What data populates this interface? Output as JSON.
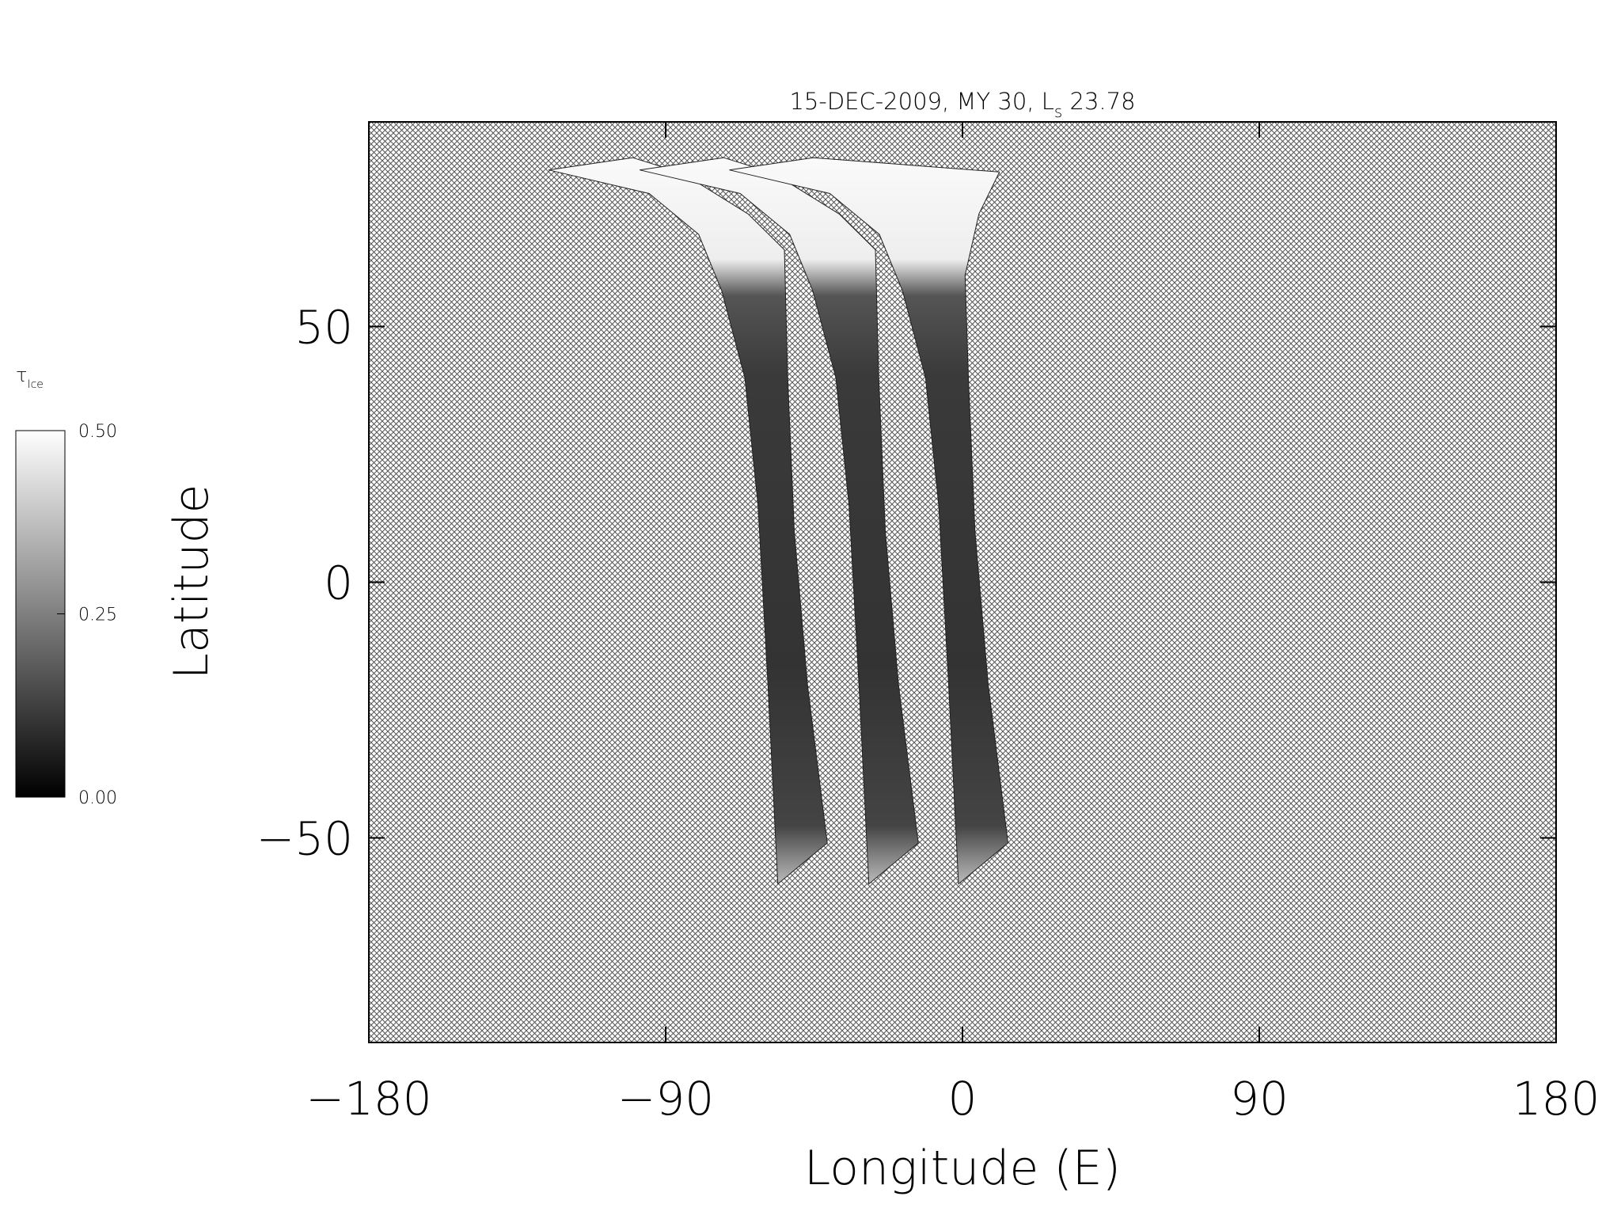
{
  "chart_data": {
    "type": "map",
    "title": [
      "15-DEC-2009, MY 30,  L",
      "s",
      " 23.78"
    ],
    "x_label": "Longitude (E)",
    "y_label": "Latitude",
    "xlim": [
      -180,
      180
    ],
    "xticks": [
      {
        "value": -180,
        "label": "−180"
      },
      {
        "value": -90,
        "label": "−90"
      },
      0,
      90,
      180
    ],
    "ylim": [
      -90,
      90
    ],
    "yticks": [
      {
        "value": -50,
        "label": "−50"
      },
      0,
      50
    ],
    "colorbar": {
      "label": "τ",
      "label_sub": "Ice",
      "lim": [
        0,
        0.5
      ],
      "ticks": [
        {
          "value": 0,
          "label": "0.00"
        },
        {
          "value": 0.25,
          "label": "0.25"
        },
        {
          "value": 0.5,
          "label": "0.50"
        }
      ]
    },
    "swaths": [
      {
        "x": [
          -125.5,
          -95,
          -80,
          -73,
          -66,
          -62,
          -59,
          -56,
          -41,
          -47,
          -51,
          -53,
          -54,
          -65,
          -85,
          -100
        ],
        "y": [
          80.6,
          76,
          68,
          57,
          40,
          15,
          -20,
          -59,
          -51,
          -20,
          10,
          40,
          65,
          72,
          80,
          83
        ]
      },
      {
        "x": [
          -97.9,
          -67.4,
          -52.4,
          -45.4,
          -38.4,
          -34.4,
          -31.4,
          -28.4,
          -13.4,
          -19.4,
          -23.4,
          -25.4,
          -26.4,
          -37.4,
          -57.4,
          -72.4
        ],
        "y": [
          80.6,
          76,
          68,
          57,
          40,
          15,
          -20,
          -59,
          -51,
          -20,
          10,
          40,
          65,
          72,
          80,
          83
        ]
      },
      {
        "x": [
          -70.7,
          -40.2,
          -25.2,
          -18.2,
          -11.2,
          -7.2,
          -4.2,
          -1.2,
          13.8,
          7.8,
          3.8,
          1.8,
          0.8,
          5,
          11.2,
          -45.2
        ],
        "y": [
          80.6,
          76,
          68,
          57,
          40,
          15,
          -20,
          -59,
          -51,
          -20,
          10,
          40,
          60,
          72,
          80.2,
          83
        ]
      }
    ]
  }
}
